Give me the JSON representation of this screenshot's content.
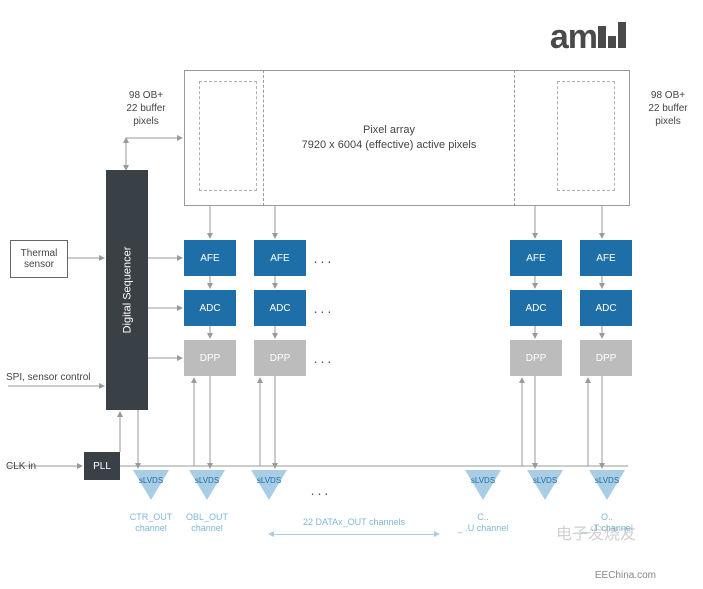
{
  "logo": {
    "text": "am",
    "color": "#4a4a4a"
  },
  "pixel_array": {
    "title": "Pixel array",
    "subtitle": "7920 x 6004 (effective) active pixels",
    "left_label": "98 OB+\n22 buffer\npixels",
    "right_label": "98 OB+\n22 buffer\npixels",
    "border_color": "#9a9a9a"
  },
  "thermal": {
    "label": "Thermal sensor",
    "border_color": "#666666"
  },
  "sequencer": {
    "label": "Digital Sequencer",
    "bg_color": "#3a4146"
  },
  "spi": {
    "label": "SPI, sensor control"
  },
  "clk": {
    "label": "CLK in"
  },
  "pll": {
    "label": "PLL",
    "bg_color": "#3a4146"
  },
  "afe": {
    "label": "AFE",
    "bg_color": "#1e6fa8"
  },
  "adc": {
    "label": "ADC",
    "bg_color": "#1e6fa8"
  },
  "dpp": {
    "label": "DPP",
    "bg_color": "#bcbcbc"
  },
  "slvds": {
    "label": "sLVDS",
    "tri_color": "#a8cde4"
  },
  "channels": {
    "ctr": "CTR_OUT channel",
    "obl": "OBL_OUT channel",
    "datax": "22 DATAx_OUT channels",
    "right1": "C.. _ .U channel",
    "right2": "O.. __.T channel"
  },
  "dots": "...",
  "colors": {
    "text": "#444444",
    "channel_text": "#7fb8d8",
    "arrow": "#9a9a9a",
    "background": "#ffffff"
  },
  "watermarks": {
    "w1": "电子发烧友",
    "w2": "EEChina.com"
  }
}
